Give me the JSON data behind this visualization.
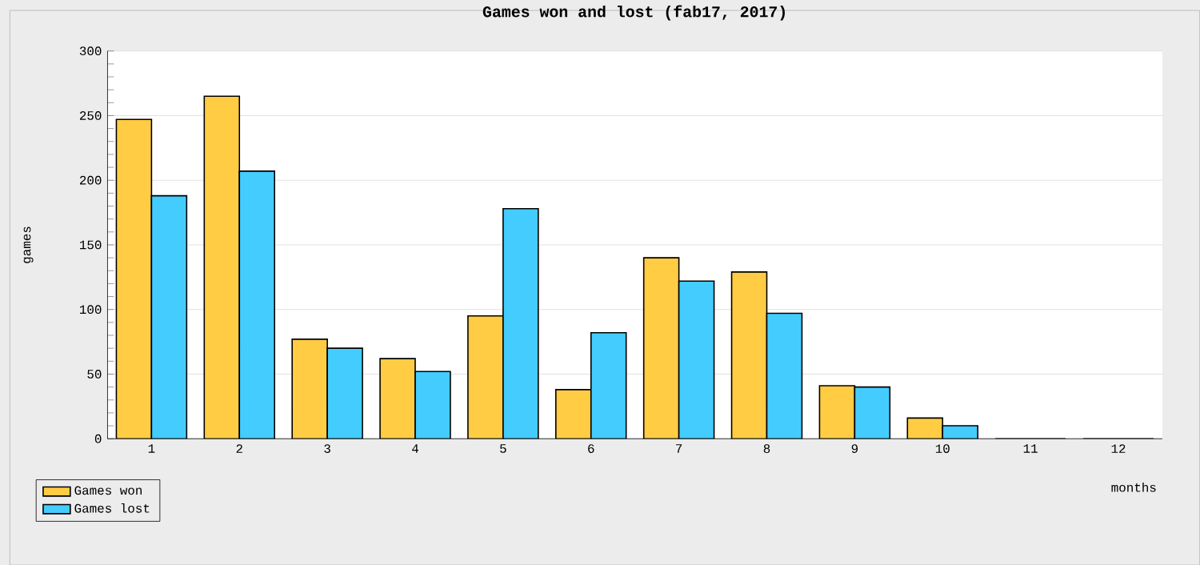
{
  "chart_data": {
    "type": "bar",
    "title": "Games won and lost (fab17, 2017)",
    "xlabel": "months",
    "ylabel": "games",
    "categories": [
      "1",
      "2",
      "3",
      "4",
      "5",
      "6",
      "7",
      "8",
      "9",
      "10",
      "11",
      "12"
    ],
    "series": [
      {
        "name": "Games won",
        "color": "#ffcc44",
        "values": [
          247,
          265,
          77,
          62,
          95,
          38,
          140,
          129,
          41,
          16,
          0,
          0
        ]
      },
      {
        "name": "Games lost",
        "color": "#44ccff",
        "values": [
          188,
          207,
          70,
          52,
          178,
          82,
          122,
          97,
          40,
          10,
          0,
          0
        ]
      }
    ],
    "ylim": [
      0,
      300
    ],
    "yticks": [
      0,
      50,
      100,
      150,
      200,
      250,
      300
    ],
    "grid": "y",
    "legend": "bottom left"
  }
}
